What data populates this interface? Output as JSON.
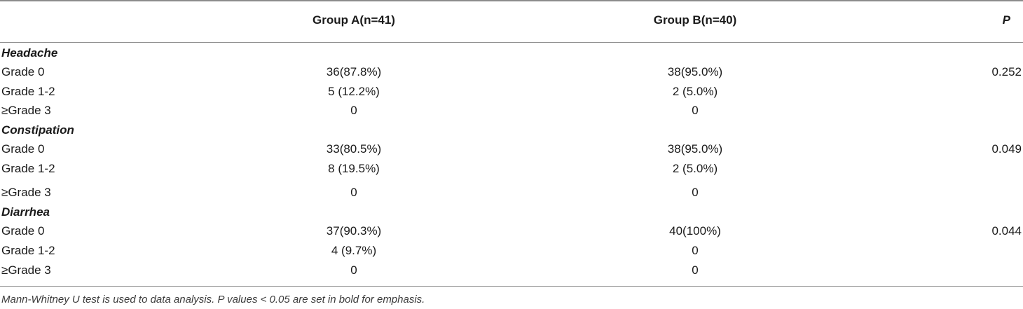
{
  "table": {
    "header": {
      "group_a": "Group A(n=41)",
      "group_b": "Group B(n=40)",
      "p": "P"
    },
    "rows": [
      {
        "type": "section",
        "label": "Headache"
      },
      {
        "type": "data",
        "label": "Grade 0",
        "a": "36(87.8%)",
        "b": "38(95.0%)",
        "p": "0.252"
      },
      {
        "type": "data",
        "label": "Grade 1-2",
        "a": "5 (12.2%)",
        "b": "2 (5.0%)",
        "p": ""
      },
      {
        "type": "data",
        "label": "≥Grade 3",
        "a": "0",
        "b": "0",
        "p": ""
      },
      {
        "type": "section",
        "label": "Constipation"
      },
      {
        "type": "data",
        "label": "Grade 0",
        "a": "33(80.5%)",
        "b": "38(95.0%)",
        "p": "0.049"
      },
      {
        "type": "data",
        "label": "Grade 1-2",
        "a": "8 (19.5%)",
        "b": "2 (5.0%)",
        "p": ""
      },
      {
        "type": "data",
        "label": "≥Grade 3",
        "a": "0",
        "b": "0",
        "p": ""
      },
      {
        "type": "section",
        "label": "Diarrhea"
      },
      {
        "type": "data",
        "label": "Grade 0",
        "a": "37(90.3%)",
        "b": "40(100%)",
        "p": "0.044"
      },
      {
        "type": "data",
        "label": "Grade 1-2",
        "a": "4 (9.7%)",
        "b": "0",
        "p": ""
      },
      {
        "type": "data",
        "label": "≥Grade 3",
        "a": "0",
        "b": "0",
        "p": ""
      }
    ],
    "footnote": "Mann-Whitney U test is used to data analysis. P values < 0.05 are set in bold for emphasis."
  }
}
